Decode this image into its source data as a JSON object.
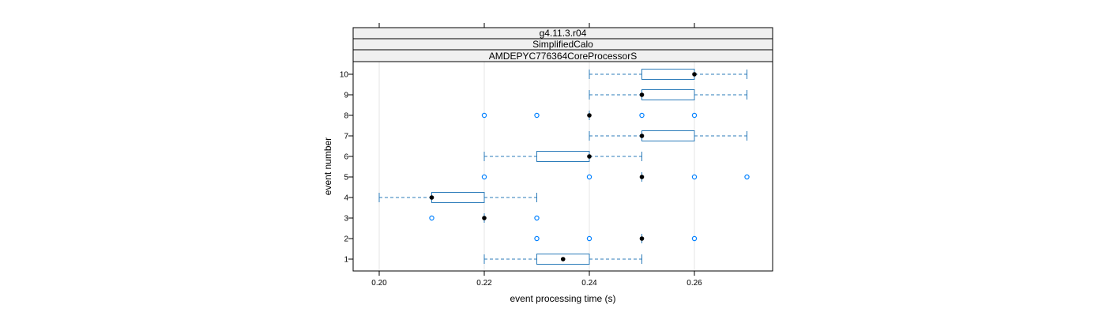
{
  "strips": [
    "g4.11.3.r04",
    "SimplifiedCalo",
    "AMDEPYC776364CoreProcessorS"
  ],
  "colors": {
    "box": "#0080FF",
    "box_stroke": "#2b7bb9",
    "outlier": "#0080FF",
    "median": "#000000",
    "strip_bg": "#f0f0f0",
    "grid": "#e6e6e6",
    "frame": "#000000"
  },
  "chart_data": {
    "type": "boxplot",
    "orientation": "horizontal",
    "xlabel": "event processing time (s)",
    "ylabel": "event number",
    "xlim": [
      0.195,
      0.275
    ],
    "xticks": [
      0.2,
      0.22,
      0.24,
      0.26
    ],
    "xtick_labels": [
      "0.20",
      "0.22",
      "0.24",
      "0.26"
    ],
    "categories": [
      "1",
      "2",
      "3",
      "4",
      "5",
      "6",
      "7",
      "8",
      "9",
      "10"
    ],
    "grid": true,
    "boxes": [
      {
        "event": "1",
        "whisker_low": 0.22,
        "q1": 0.23,
        "median": 0.235,
        "q3": 0.24,
        "whisker_high": 0.25,
        "outliers": []
      },
      {
        "event": "2",
        "whisker_low": 0.25,
        "q1": 0.25,
        "median": 0.25,
        "q3": 0.25,
        "whisker_high": 0.25,
        "outliers": [
          0.23,
          0.24,
          0.26
        ]
      },
      {
        "event": "3",
        "whisker_low": 0.22,
        "q1": 0.22,
        "median": 0.22,
        "q3": 0.22,
        "whisker_high": 0.22,
        "outliers": [
          0.21,
          0.23
        ]
      },
      {
        "event": "4",
        "whisker_low": 0.2,
        "q1": 0.21,
        "median": 0.21,
        "q3": 0.22,
        "whisker_high": 0.23,
        "outliers": []
      },
      {
        "event": "5",
        "whisker_low": 0.25,
        "q1": 0.25,
        "median": 0.25,
        "q3": 0.25,
        "whisker_high": 0.25,
        "outliers": [
          0.22,
          0.24,
          0.26,
          0.27
        ]
      },
      {
        "event": "6",
        "whisker_low": 0.22,
        "q1": 0.23,
        "median": 0.24,
        "q3": 0.24,
        "whisker_high": 0.25,
        "outliers": []
      },
      {
        "event": "7",
        "whisker_low": 0.24,
        "q1": 0.25,
        "median": 0.25,
        "q3": 0.26,
        "whisker_high": 0.27,
        "outliers": []
      },
      {
        "event": "8",
        "whisker_low": 0.24,
        "q1": 0.24,
        "median": 0.24,
        "q3": 0.24,
        "whisker_high": 0.24,
        "outliers": [
          0.22,
          0.23,
          0.25,
          0.26
        ]
      },
      {
        "event": "9",
        "whisker_low": 0.24,
        "q1": 0.25,
        "median": 0.25,
        "q3": 0.26,
        "whisker_high": 0.27,
        "outliers": []
      },
      {
        "event": "10",
        "whisker_low": 0.24,
        "q1": 0.25,
        "median": 0.26,
        "q3": 0.26,
        "whisker_high": 0.27,
        "outliers": []
      }
    ]
  }
}
